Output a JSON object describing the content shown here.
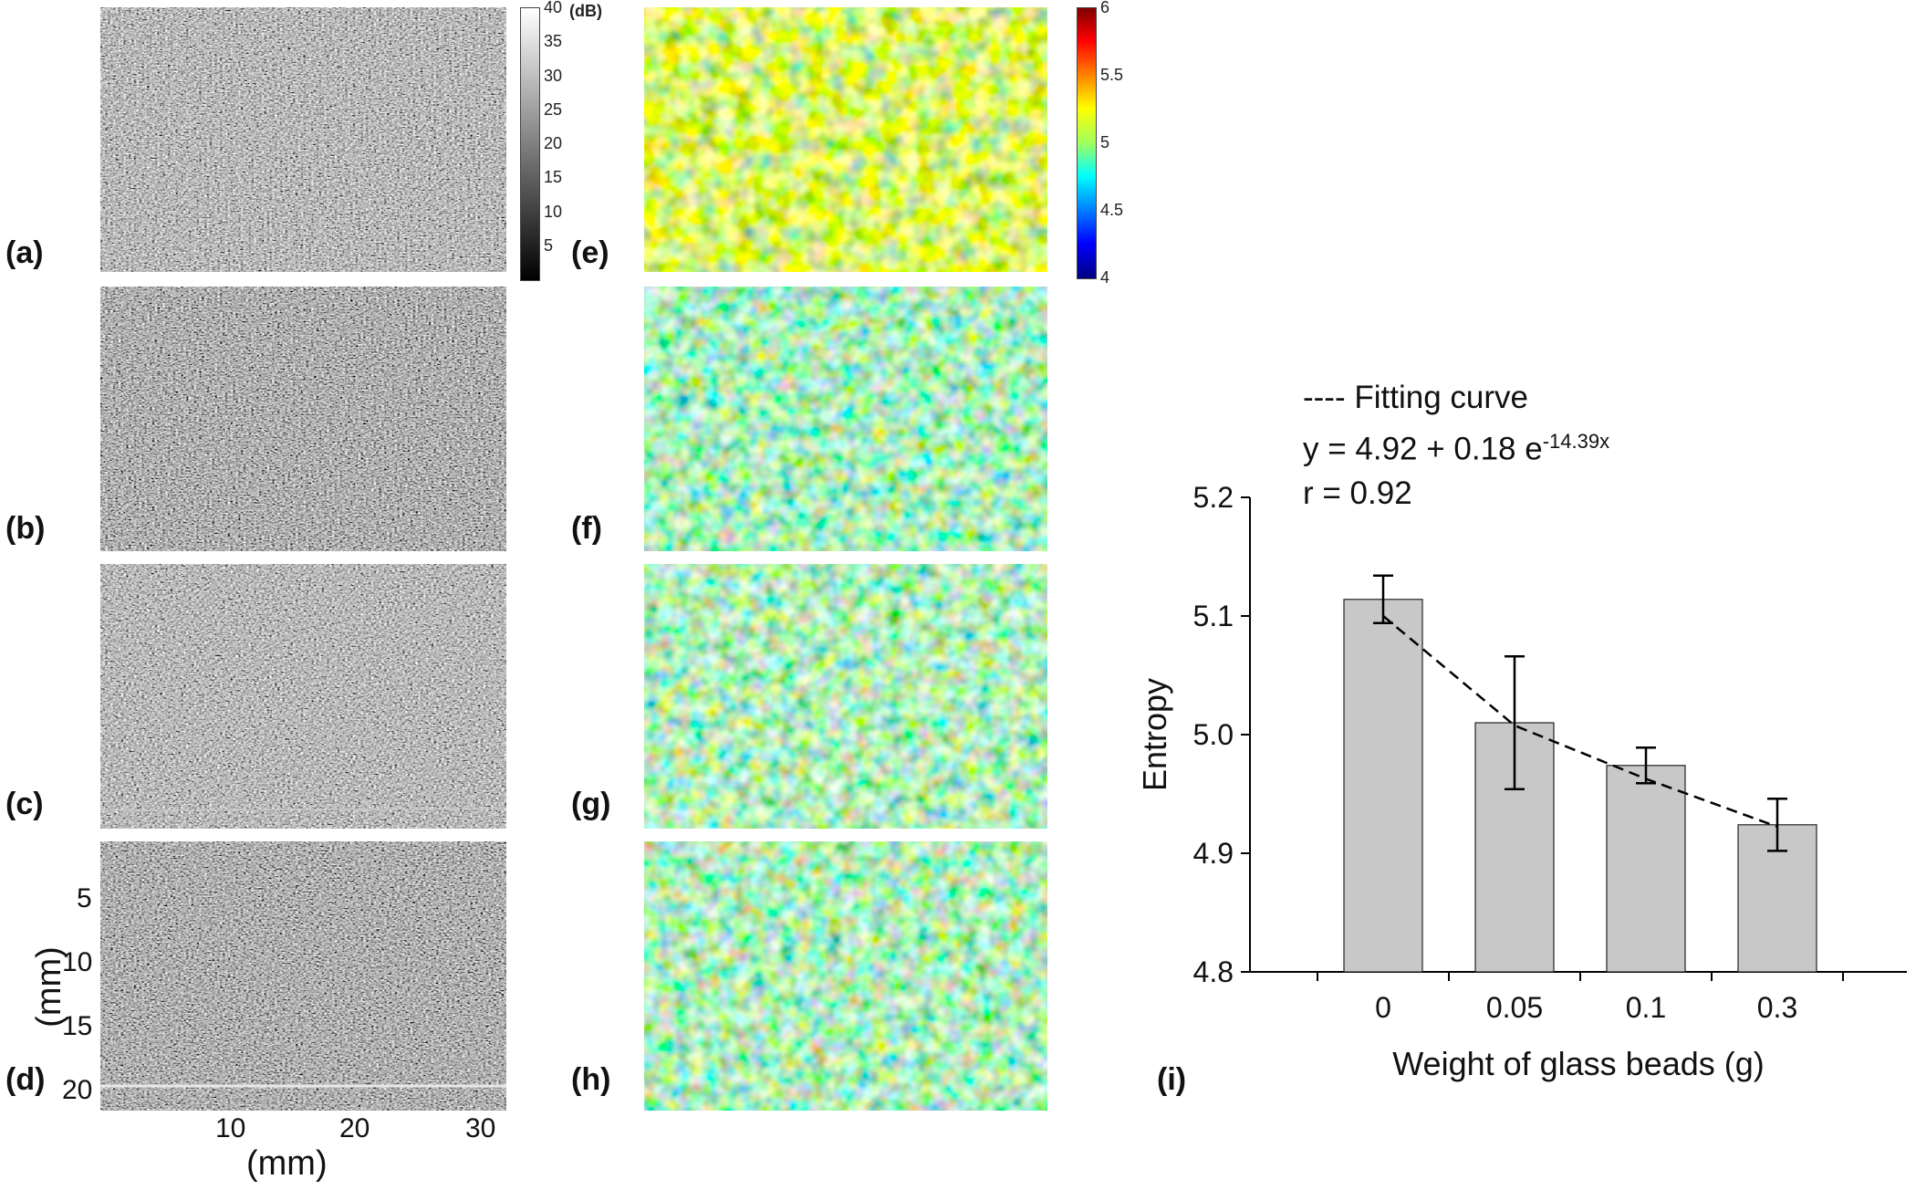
{
  "panel_labels": [
    "(a)",
    "(b)",
    "(c)",
    "(d)",
    "(e)",
    "(f)",
    "(g)",
    "(h)",
    "(i)"
  ],
  "gray_colorbar": {
    "unit": "(dB)",
    "ticks": [
      "40",
      "35",
      "30",
      "25",
      "20",
      "15",
      "10",
      "5"
    ]
  },
  "entropy_colorbar": {
    "ticks": [
      "6",
      "5.5",
      "5",
      "4.5",
      "4"
    ]
  },
  "bmode_axes": {
    "x_ticks": [
      "10",
      "20",
      "30"
    ],
    "y_ticks": [
      "5",
      "10",
      "15",
      "20"
    ],
    "x_label": "(mm)",
    "y_label": "(mm)"
  },
  "chart_data": {
    "type": "bar",
    "title": "",
    "categories": [
      "0",
      "0.05",
      "0.1",
      "0.3"
    ],
    "values": [
      5.114,
      5.01,
      4.974,
      4.924
    ],
    "errors": [
      0.02,
      0.056,
      0.015,
      0.022
    ],
    "xlabel": "Weight of glass beads (g)",
    "ylabel": "Entropy",
    "ylim": [
      4.8,
      5.2
    ],
    "y_ticks": [
      "4.8",
      "4.9",
      "5.0",
      "5.1",
      "5.2"
    ],
    "bar_color": "#c8c8c8",
    "fit_curve": {
      "a": 4.92,
      "b": 0.18,
      "k": 14.39,
      "legend_label": "---- Fitting curve",
      "equation_prefix": "y = 4.92 + 0.18 e",
      "equation_exponent": "-14.39x",
      "r_text": "r = 0.92"
    }
  }
}
